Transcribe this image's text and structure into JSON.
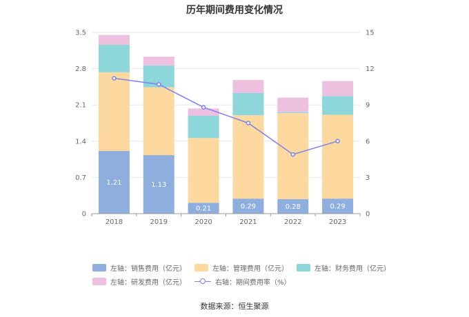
{
  "chart_data": {
    "type": "bar",
    "title": "历年期间费用变化情况",
    "categories": [
      "2018",
      "2019",
      "2020",
      "2021",
      "2022",
      "2023"
    ],
    "left_axis": {
      "ylim": [
        0,
        3.5
      ],
      "ticks": [
        "0",
        "0.7",
        "1.4",
        "2.1",
        "2.8",
        "3.5"
      ]
    },
    "right_axis": {
      "ylim": [
        0,
        15
      ],
      "ticks": [
        "0",
        "3",
        "6",
        "9",
        "12",
        "15"
      ]
    },
    "series": [
      {
        "name": "左轴：销售费用（亿元）",
        "stack": true,
        "axis": "left",
        "color": "#8eaedd",
        "values": [
          1.21,
          1.13,
          0.21,
          0.29,
          0.28,
          0.29
        ],
        "labels": [
          "1.21",
          "1.13",
          "0.21",
          "0.29",
          "0.28",
          "0.29"
        ]
      },
      {
        "name": "左轴：管理费用（亿元）",
        "stack": true,
        "axis": "left",
        "color": "#fdd9a0",
        "values": [
          1.52,
          1.31,
          1.25,
          1.61,
          1.66,
          1.62
        ]
      },
      {
        "name": "左轴：财务费用（亿元）",
        "stack": true,
        "axis": "left",
        "color": "#8dd6d9",
        "values": [
          0.53,
          0.42,
          0.43,
          0.43,
          0.02,
          0.36
        ]
      },
      {
        "name": "左轴：研发费用（亿元）",
        "stack": true,
        "axis": "left",
        "color": "#ecc0de",
        "values": [
          0.19,
          0.17,
          0.14,
          0.25,
          0.28,
          0.29
        ]
      },
      {
        "name": "右轴：期间费用率（%）",
        "type": "line",
        "axis": "right",
        "color": "#7b7ff0",
        "values": [
          11.2,
          10.7,
          8.8,
          7.5,
          4.9,
          6.0
        ]
      }
    ]
  },
  "source": "数据来源：恒生聚源"
}
